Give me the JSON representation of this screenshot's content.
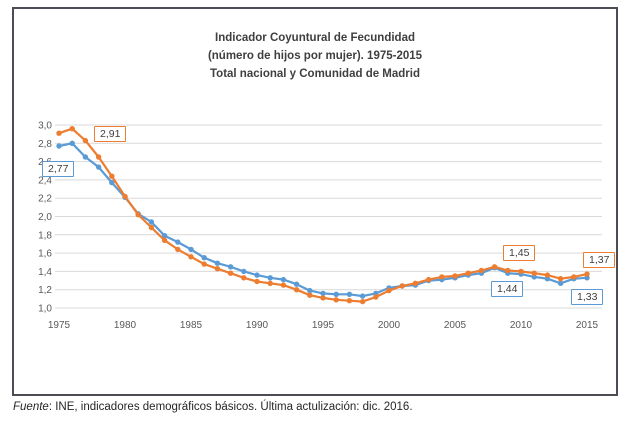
{
  "title": {
    "line1": "Indicador Coyuntural de Fecundidad",
    "line2": "(número de hijos por mujer). 1975-2015",
    "line3": "Total nacional y Comunidad de Madrid"
  },
  "source_note": {
    "prefix": "Fuente",
    "rest": ": INE, indicadores demográficos básicos. Última actulización: dic. 2016."
  },
  "colors": {
    "national": "#5B9BD5",
    "madrid": "#ED7D31",
    "gridline": "#D9D9D9",
    "axis_text": "#595959",
    "title_text": "#3F3F3F",
    "box_border": "#4C4C54"
  },
  "data_labels": [
    {
      "text": "2,77",
      "series": "Total nacional",
      "year": 1975
    },
    {
      "text": "2,91",
      "series": "Comunidad de Madrid",
      "year": 1975
    },
    {
      "text": "1,44",
      "series": "Total nacional",
      "year": 2008
    },
    {
      "text": "1,45",
      "series": "Comunidad de Madrid",
      "year": 2008
    },
    {
      "text": "1,33",
      "series": "Total nacional",
      "year": 2015
    },
    {
      "text": "1,37",
      "series": "Comunidad de Madrid",
      "year": 2015
    }
  ],
  "chart_data": {
    "type": "line",
    "title": "Indicador Coyuntural de Fecundidad (número de hijos por mujer). 1975-2015. Total nacional y Comunidad de Madrid",
    "xlabel": "",
    "ylabel": "",
    "ylim": [
      1.0,
      3.0
    ],
    "xlim": [
      1975,
      2015
    ],
    "grid": true,
    "legend_position": "none",
    "decimal_separator": ",",
    "x_ticks": [
      1975,
      1980,
      1985,
      1990,
      1995,
      2000,
      2005,
      2010,
      2015
    ],
    "y_ticks": [
      3.0,
      2.8,
      2.6,
      2.4,
      2.2,
      2.0,
      1.8,
      1.6,
      1.4,
      1.2,
      1.0
    ],
    "x": [
      1975,
      1976,
      1977,
      1978,
      1979,
      1980,
      1981,
      1982,
      1983,
      1984,
      1985,
      1986,
      1987,
      1988,
      1989,
      1990,
      1991,
      1992,
      1993,
      1994,
      1995,
      1996,
      1997,
      1998,
      1999,
      2000,
      2001,
      2002,
      2003,
      2004,
      2005,
      2006,
      2007,
      2008,
      2009,
      2010,
      2011,
      2012,
      2013,
      2014,
      2015
    ],
    "series": [
      {
        "name": "Total nacional",
        "color": "#5B9BD5",
        "values": [
          2.77,
          2.8,
          2.65,
          2.54,
          2.37,
          2.21,
          2.03,
          1.94,
          1.79,
          1.72,
          1.64,
          1.55,
          1.49,
          1.45,
          1.4,
          1.36,
          1.33,
          1.31,
          1.26,
          1.19,
          1.16,
          1.15,
          1.15,
          1.13,
          1.16,
          1.22,
          1.24,
          1.25,
          1.3,
          1.31,
          1.33,
          1.36,
          1.38,
          1.44,
          1.38,
          1.37,
          1.34,
          1.32,
          1.27,
          1.32,
          1.33
        ]
      },
      {
        "name": "Comunidad de Madrid",
        "color": "#ED7D31",
        "values": [
          2.91,
          2.96,
          2.83,
          2.65,
          2.44,
          2.22,
          2.02,
          1.88,
          1.74,
          1.64,
          1.56,
          1.48,
          1.43,
          1.38,
          1.33,
          1.29,
          1.27,
          1.25,
          1.2,
          1.14,
          1.11,
          1.09,
          1.08,
          1.07,
          1.12,
          1.19,
          1.24,
          1.27,
          1.31,
          1.34,
          1.35,
          1.38,
          1.41,
          1.45,
          1.41,
          1.4,
          1.38,
          1.36,
          1.32,
          1.34,
          1.37
        ]
      }
    ]
  }
}
